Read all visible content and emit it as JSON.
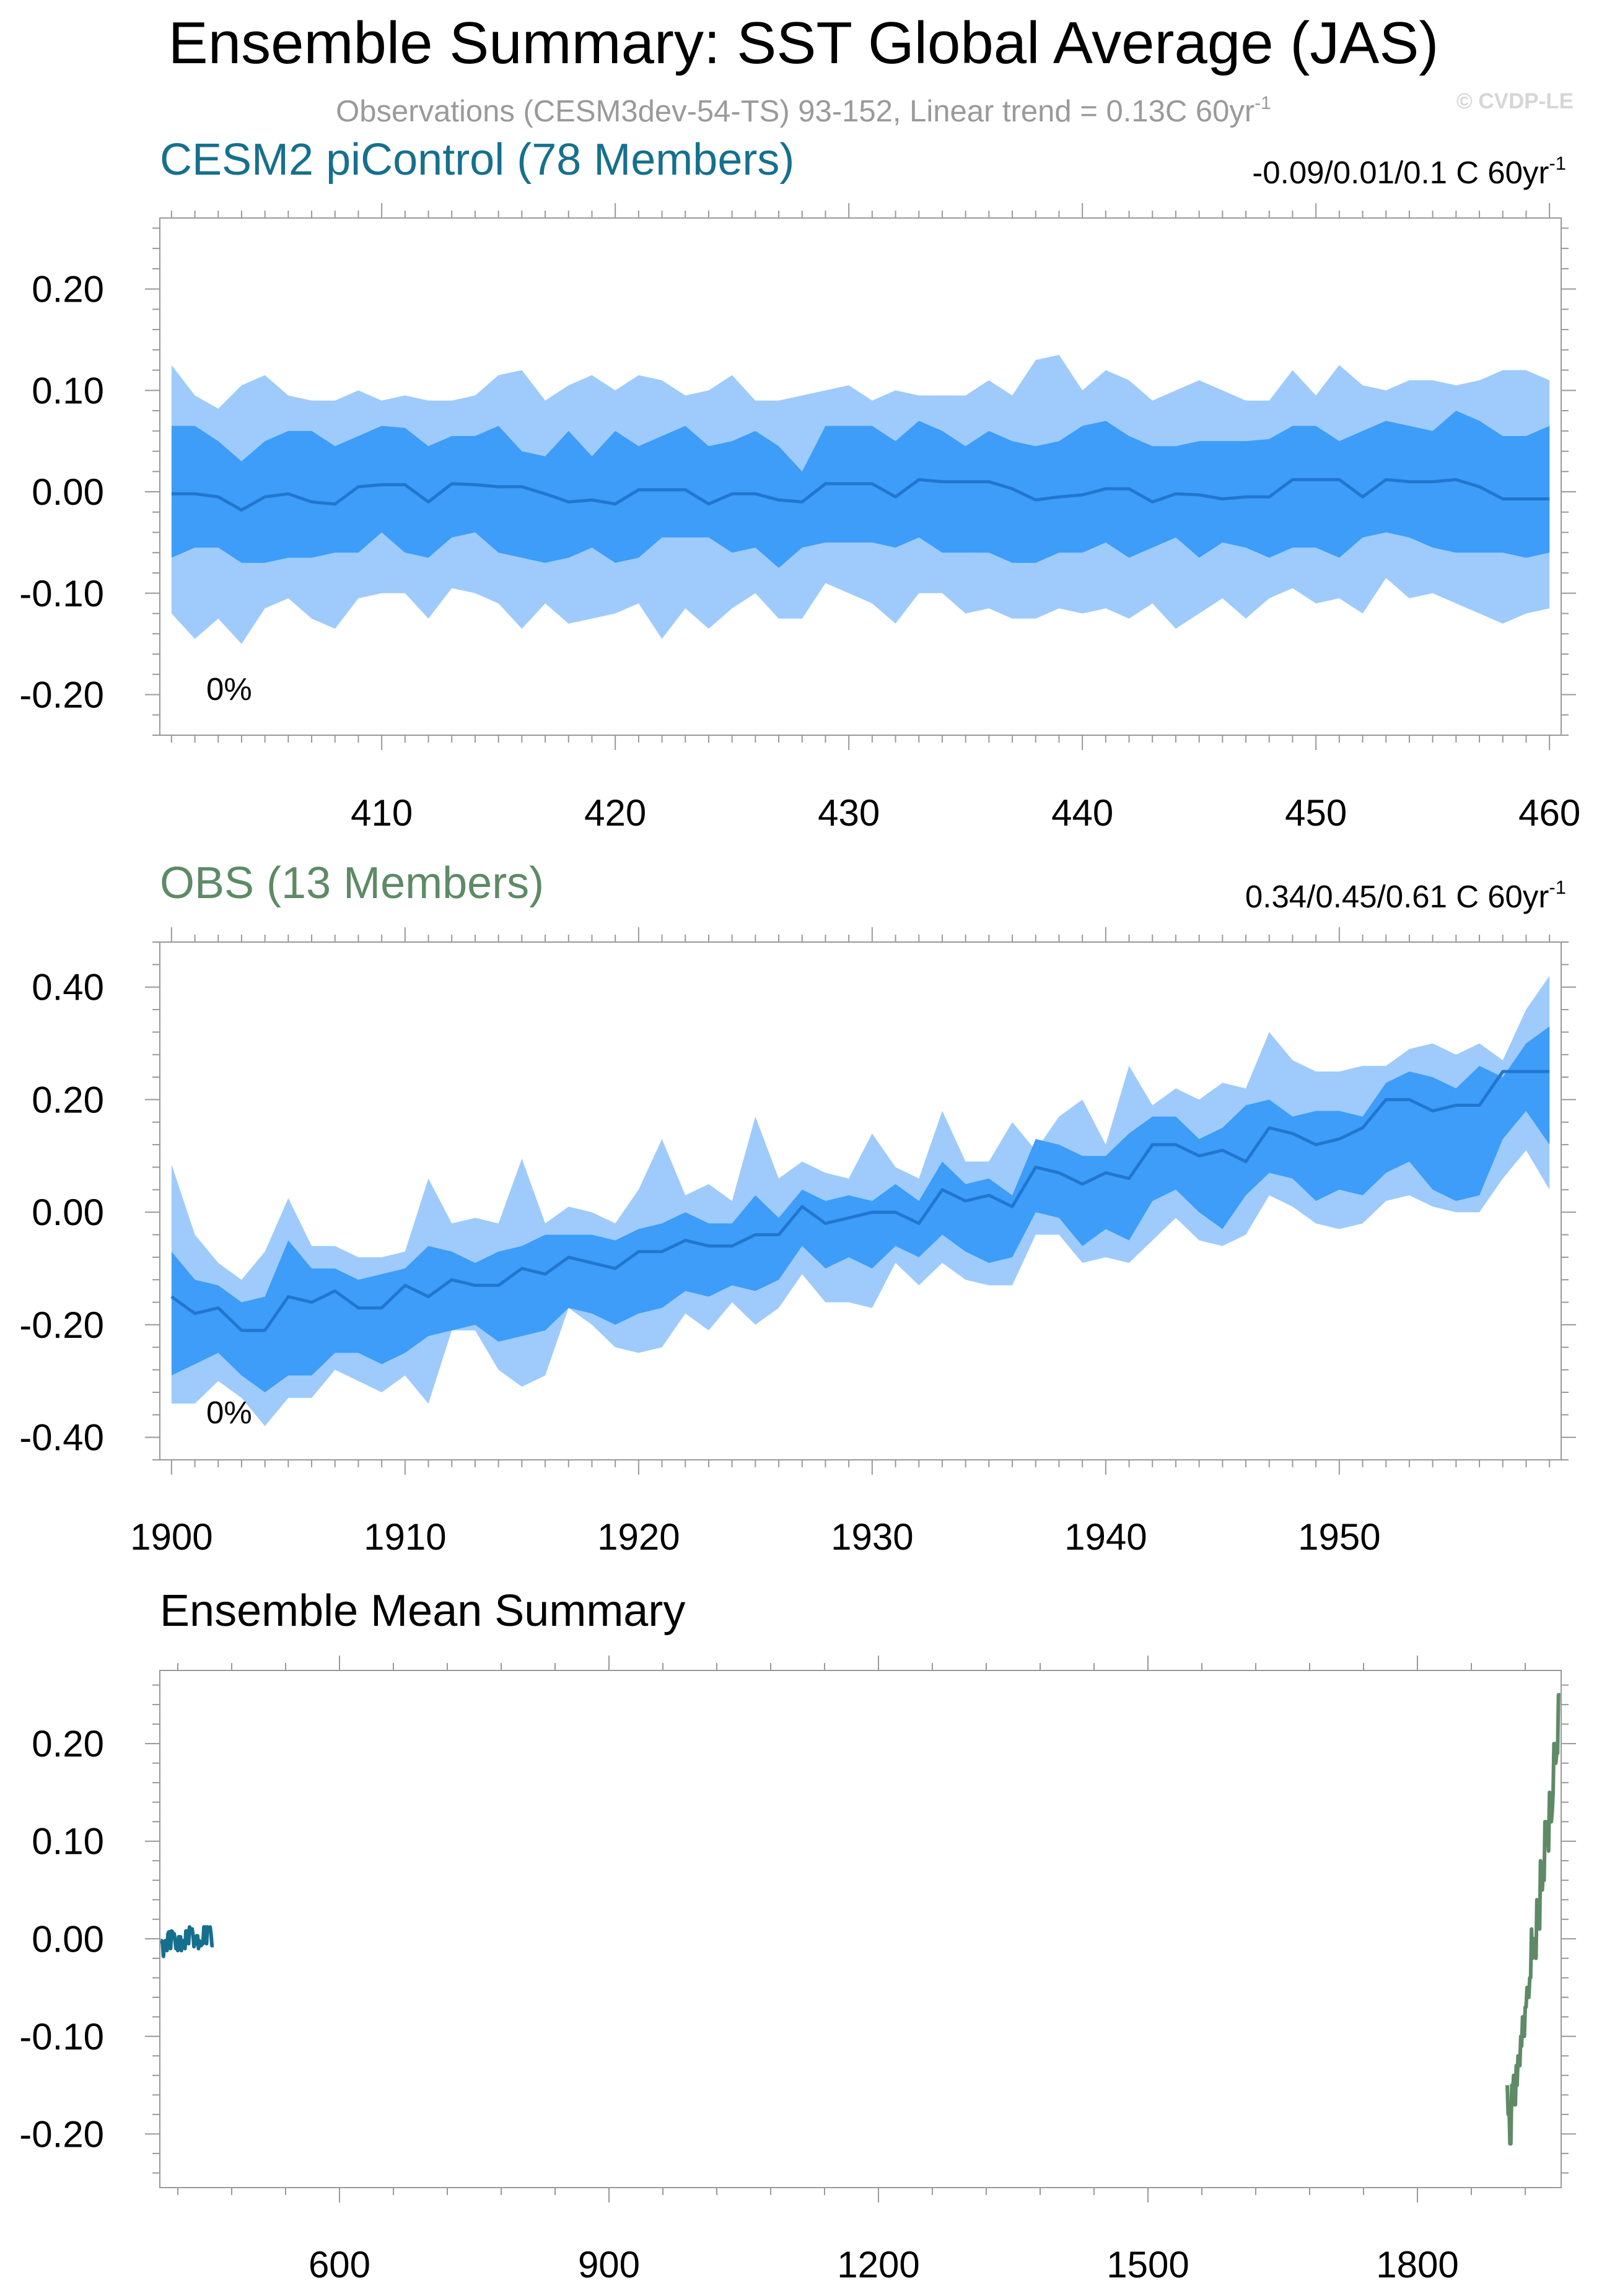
{
  "figure": {
    "title": "Ensemble Summary: SST Global Average (JAS)",
    "subtitle": "Observations (CESM3dev-54-TS) 93-152, Linear trend = 0.13C 60yr",
    "subtitle_exp": "-1",
    "watermark": "© CVDP-LE"
  },
  "colors": {
    "outer_band": "#9ecbfb",
    "inner_band": "#3d9df8",
    "mean_line": "#2176d0",
    "cesm_label": "#16708d",
    "obs_label": "#5e8a66",
    "axis": "#999999",
    "subtitle": "#9a9a9a"
  },
  "panels": {
    "p1": {
      "label": "CESM2 piControl (78 Members)",
      "stat": "-0.09/0.01/0.1 C 60yr",
      "stat_exp": "-1",
      "percent": "0%"
    },
    "p2": {
      "label": "OBS (13 Members)",
      "stat": "0.34/0.45/0.61 C 60yr",
      "stat_exp": "-1",
      "percent": "0%"
    },
    "p3": {
      "label": "Ensemble Mean Summary"
    }
  },
  "chart_data": [
    {
      "id": "p1",
      "type": "area",
      "title": "CESM2 piControl (78 Members)",
      "xlim": [
        400.5,
        460.5
      ],
      "ylim": [
        -0.24,
        0.27
      ],
      "xticks": [
        410,
        420,
        430,
        440,
        450,
        460
      ],
      "yticks": [
        -0.2,
        -0.1,
        0.0,
        0.1,
        0.2
      ],
      "xticklabels": [
        "410",
        "420",
        "430",
        "440",
        "450",
        "460"
      ],
      "yticklabels": [
        "-0.20",
        "-0.10",
        "0.00",
        "0.10",
        "0.20"
      ],
      "x": [
        401,
        402,
        403,
        404,
        405,
        406,
        407,
        408,
        409,
        410,
        411,
        412,
        413,
        414,
        415,
        416,
        417,
        418,
        419,
        420,
        421,
        422,
        423,
        424,
        425,
        426,
        427,
        428,
        429,
        430,
        431,
        432,
        433,
        434,
        435,
        436,
        437,
        438,
        439,
        440,
        441,
        442,
        443,
        444,
        445,
        446,
        447,
        448,
        449,
        450,
        451,
        452,
        453,
        454,
        455,
        456,
        457,
        458,
        459,
        460
      ],
      "series": [
        {
          "role": "outer_upper",
          "values": [
            0.125,
            0.095,
            0.082,
            0.105,
            0.115,
            0.095,
            0.09,
            0.09,
            0.1,
            0.09,
            0.095,
            0.09,
            0.09,
            0.095,
            0.115,
            0.12,
            0.09,
            0.105,
            0.115,
            0.1,
            0.115,
            0.11,
            0.095,
            0.1,
            0.115,
            0.09,
            0.09,
            0.095,
            0.1,
            0.105,
            0.09,
            0.1,
            0.095,
            0.095,
            0.095,
            0.11,
            0.095,
            0.13,
            0.135,
            0.1,
            0.12,
            0.11,
            0.09,
            0.1,
            0.11,
            0.1,
            0.09,
            0.09,
            0.12,
            0.095,
            0.125,
            0.105,
            0.1,
            0.11,
            0.11,
            0.105,
            0.11,
            0.12,
            0.12,
            0.11
          ]
        },
        {
          "role": "inner_upper",
          "values": [
            0.065,
            0.065,
            0.05,
            0.03,
            0.05,
            0.06,
            0.06,
            0.045,
            0.055,
            0.065,
            0.063,
            0.045,
            0.055,
            0.055,
            0.065,
            0.04,
            0.035,
            0.06,
            0.035,
            0.06,
            0.045,
            0.055,
            0.065,
            0.045,
            0.05,
            0.06,
            0.045,
            0.02,
            0.065,
            0.065,
            0.065,
            0.05,
            0.07,
            0.06,
            0.045,
            0.06,
            0.05,
            0.045,
            0.05,
            0.065,
            0.07,
            0.055,
            0.045,
            0.045,
            0.05,
            0.05,
            0.05,
            0.052,
            0.065,
            0.065,
            0.05,
            0.06,
            0.07,
            0.065,
            0.06,
            0.08,
            0.07,
            0.055,
            0.055,
            0.065
          ]
        },
        {
          "role": "mean",
          "values": [
            -0.002,
            -0.002,
            -0.005,
            -0.018,
            -0.005,
            -0.002,
            -0.01,
            -0.012,
            0.005,
            0.007,
            0.007,
            -0.01,
            0.008,
            0.007,
            0.005,
            0.005,
            -0.002,
            -0.01,
            -0.008,
            -0.012,
            0.002,
            0.002,
            0.002,
            -0.012,
            -0.002,
            -0.002,
            -0.008,
            -0.01,
            0.008,
            0.008,
            0.008,
            -0.005,
            0.012,
            0.01,
            0.01,
            0.01,
            0.003,
            -0.008,
            -0.005,
            -0.003,
            0.003,
            0.003,
            -0.01,
            -0.002,
            -0.003,
            -0.007,
            -0.005,
            -0.005,
            0.012,
            0.012,
            0.012,
            -0.005,
            0.012,
            0.01,
            0.01,
            0.012,
            0.005,
            -0.007,
            -0.007,
            -0.007
          ]
        },
        {
          "role": "inner_lower",
          "values": [
            -0.065,
            -0.055,
            -0.055,
            -0.07,
            -0.07,
            -0.065,
            -0.065,
            -0.06,
            -0.06,
            -0.04,
            -0.06,
            -0.065,
            -0.045,
            -0.04,
            -0.06,
            -0.065,
            -0.07,
            -0.065,
            -0.055,
            -0.07,
            -0.065,
            -0.045,
            -0.045,
            -0.045,
            -0.06,
            -0.055,
            -0.075,
            -0.055,
            -0.05,
            -0.05,
            -0.05,
            -0.055,
            -0.045,
            -0.06,
            -0.06,
            -0.06,
            -0.07,
            -0.07,
            -0.06,
            -0.06,
            -0.05,
            -0.065,
            -0.055,
            -0.045,
            -0.065,
            -0.05,
            -0.055,
            -0.065,
            -0.055,
            -0.055,
            -0.065,
            -0.045,
            -0.04,
            -0.045,
            -0.055,
            -0.06,
            -0.06,
            -0.06,
            -0.065,
            -0.06
          ]
        },
        {
          "role": "outer_lower",
          "values": [
            -0.12,
            -0.145,
            -0.125,
            -0.15,
            -0.115,
            -0.105,
            -0.125,
            -0.135,
            -0.105,
            -0.1,
            -0.1,
            -0.125,
            -0.095,
            -0.1,
            -0.11,
            -0.135,
            -0.11,
            -0.13,
            -0.125,
            -0.12,
            -0.11,
            -0.145,
            -0.115,
            -0.135,
            -0.115,
            -0.1,
            -0.125,
            -0.125,
            -0.09,
            -0.1,
            -0.11,
            -0.13,
            -0.1,
            -0.1,
            -0.12,
            -0.115,
            -0.125,
            -0.125,
            -0.115,
            -0.12,
            -0.115,
            -0.125,
            -0.11,
            -0.135,
            -0.12,
            -0.105,
            -0.125,
            -0.105,
            -0.095,
            -0.11,
            -0.105,
            -0.12,
            -0.085,
            -0.105,
            -0.1,
            -0.11,
            -0.12,
            -0.13,
            -0.12,
            -0.115
          ]
        }
      ]
    },
    {
      "id": "p2",
      "type": "area",
      "title": "OBS (13 Members)",
      "xlim": [
        1899.5,
        1959.5
      ],
      "ylim": [
        -0.44,
        0.48
      ],
      "xticks": [
        1900,
        1910,
        1920,
        1930,
        1940,
        1950
      ],
      "yticks": [
        -0.4,
        -0.2,
        0.0,
        0.2,
        0.4
      ],
      "xticklabels": [
        "1900",
        "1910",
        "1920",
        "1930",
        "1940",
        "1950"
      ],
      "yticklabels": [
        "-0.40",
        "-0.20",
        "0.00",
        "0.20",
        "0.40"
      ],
      "x": [
        1900,
        1901,
        1902,
        1903,
        1904,
        1905,
        1906,
        1907,
        1908,
        1909,
        1910,
        1911,
        1912,
        1913,
        1914,
        1915,
        1916,
        1917,
        1918,
        1919,
        1920,
        1921,
        1922,
        1923,
        1924,
        1925,
        1926,
        1927,
        1928,
        1929,
        1930,
        1931,
        1932,
        1933,
        1934,
        1935,
        1936,
        1937,
        1938,
        1939,
        1940,
        1941,
        1942,
        1943,
        1944,
        1945,
        1946,
        1947,
        1948,
        1949,
        1950,
        1951,
        1952,
        1953,
        1954,
        1955,
        1956,
        1957,
        1958,
        1959
      ],
      "series": [
        {
          "role": "outer_upper",
          "values": [
            0.085,
            -0.04,
            -0.09,
            -0.12,
            -0.07,
            0.025,
            -0.06,
            -0.06,
            -0.08,
            -0.08,
            -0.07,
            0.06,
            -0.02,
            -0.01,
            -0.02,
            0.095,
            -0.02,
            0.01,
            0.0,
            -0.02,
            0.04,
            0.13,
            0.03,
            0.05,
            0.02,
            0.17,
            0.06,
            0.09,
            0.07,
            0.06,
            0.14,
            0.08,
            0.06,
            0.18,
            0.09,
            0.09,
            0.16,
            0.11,
            0.17,
            0.2,
            0.12,
            0.26,
            0.19,
            0.22,
            0.2,
            0.23,
            0.22,
            0.32,
            0.27,
            0.25,
            0.25,
            0.26,
            0.26,
            0.29,
            0.3,
            0.28,
            0.3,
            0.27,
            0.36,
            0.42
          ]
        },
        {
          "role": "inner_upper",
          "values": [
            -0.07,
            -0.12,
            -0.13,
            -0.16,
            -0.15,
            -0.05,
            -0.1,
            -0.1,
            -0.12,
            -0.11,
            -0.1,
            -0.06,
            -0.07,
            -0.09,
            -0.07,
            -0.06,
            -0.04,
            -0.04,
            -0.04,
            -0.05,
            -0.03,
            -0.02,
            0.0,
            -0.02,
            -0.02,
            0.03,
            -0.01,
            0.04,
            0.02,
            0.03,
            0.02,
            0.05,
            0.02,
            0.09,
            0.05,
            0.06,
            0.03,
            0.13,
            0.12,
            0.1,
            0.1,
            0.14,
            0.17,
            0.17,
            0.13,
            0.15,
            0.19,
            0.2,
            0.17,
            0.18,
            0.18,
            0.17,
            0.23,
            0.25,
            0.24,
            0.22,
            0.26,
            0.24,
            0.3,
            0.33
          ]
        },
        {
          "role": "mean",
          "values": [
            -0.15,
            -0.18,
            -0.17,
            -0.21,
            -0.21,
            -0.15,
            -0.16,
            -0.14,
            -0.17,
            -0.17,
            -0.13,
            -0.15,
            -0.12,
            -0.13,
            -0.13,
            -0.1,
            -0.11,
            -0.08,
            -0.09,
            -0.1,
            -0.07,
            -0.07,
            -0.05,
            -0.06,
            -0.06,
            -0.04,
            -0.04,
            0.01,
            -0.02,
            -0.01,
            0.0,
            0.0,
            -0.02,
            0.04,
            0.02,
            0.03,
            0.01,
            0.08,
            0.07,
            0.05,
            0.07,
            0.06,
            0.12,
            0.12,
            0.1,
            0.11,
            0.09,
            0.15,
            0.14,
            0.12,
            0.13,
            0.15,
            0.2,
            0.2,
            0.18,
            0.19,
            0.19,
            0.25,
            0.25,
            0.25
          ]
        },
        {
          "role": "inner_lower",
          "values": [
            -0.29,
            -0.27,
            -0.25,
            -0.29,
            -0.32,
            -0.29,
            -0.29,
            -0.25,
            -0.25,
            -0.27,
            -0.25,
            -0.22,
            -0.21,
            -0.2,
            -0.23,
            -0.22,
            -0.21,
            -0.17,
            -0.18,
            -0.2,
            -0.18,
            -0.17,
            -0.14,
            -0.15,
            -0.13,
            -0.14,
            -0.12,
            -0.06,
            -0.1,
            -0.08,
            -0.1,
            -0.06,
            -0.08,
            -0.04,
            -0.07,
            -0.09,
            -0.08,
            0.0,
            -0.01,
            -0.06,
            -0.03,
            -0.05,
            0.02,
            0.04,
            0.0,
            -0.03,
            0.03,
            0.07,
            0.06,
            0.02,
            0.04,
            0.03,
            0.07,
            0.09,
            0.04,
            0.02,
            0.03,
            0.13,
            0.18,
            0.12
          ]
        },
        {
          "role": "outer_lower",
          "values": [
            -0.34,
            -0.34,
            -0.3,
            -0.33,
            -0.38,
            -0.33,
            -0.33,
            -0.28,
            -0.3,
            -0.32,
            -0.29,
            -0.34,
            -0.21,
            -0.21,
            -0.28,
            -0.31,
            -0.29,
            -0.17,
            -0.2,
            -0.24,
            -0.25,
            -0.24,
            -0.18,
            -0.21,
            -0.16,
            -0.2,
            -0.17,
            -0.11,
            -0.16,
            -0.16,
            -0.17,
            -0.09,
            -0.13,
            -0.09,
            -0.12,
            -0.13,
            -0.13,
            -0.04,
            -0.04,
            -0.09,
            -0.08,
            -0.09,
            -0.05,
            -0.01,
            -0.05,
            -0.06,
            -0.04,
            0.03,
            0.01,
            -0.02,
            -0.03,
            -0.02,
            0.02,
            0.03,
            0.01,
            0.0,
            0.0,
            0.06,
            0.11,
            0.04
          ]
        }
      ]
    },
    {
      "id": "p3",
      "type": "line",
      "title": "Ensemble Mean Summary",
      "xlim": [
        400,
        1960
      ],
      "ylim": [
        -0.255,
        0.275
      ],
      "xticks": [
        600,
        900,
        1200,
        1500,
        1800
      ],
      "yticks": [
        -0.2,
        -0.1,
        0.0,
        0.1,
        0.2
      ],
      "xticklabels": [
        "600",
        "900",
        "1200",
        "1500",
        "1800"
      ],
      "yticklabels": [
        "-0.20",
        "-0.10",
        "0.00",
        "0.10",
        "0.20"
      ],
      "series": [
        {
          "ref": "p1.mean",
          "color": "#16708d"
        },
        {
          "ref": "p2.mean",
          "color": "#5e8a66"
        }
      ]
    }
  ]
}
